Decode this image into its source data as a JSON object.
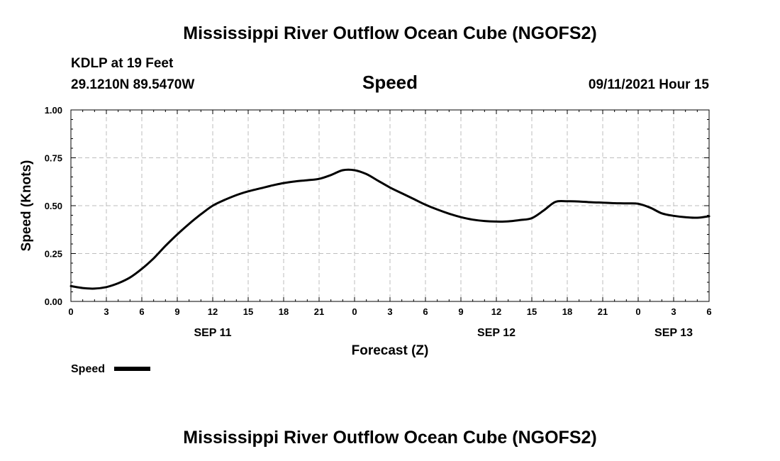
{
  "page": {
    "title_top": "Mississippi River Outflow Ocean Cube (NGOFS2)",
    "title_bottom": "Mississippi River Outflow Ocean Cube (NGOFS2)",
    "station": "KDLP at 19 Feet",
    "coords": "29.1210N  89.5470W",
    "variable": "Speed",
    "timestamp": "09/11/2021 Hour 15"
  },
  "chart_data": {
    "type": "line",
    "title": "Speed",
    "xlabel": "Forecast (Z)",
    "ylabel": "Speed (Knots)",
    "xlim": [
      0,
      54
    ],
    "ylim": [
      0,
      1
    ],
    "grid": true,
    "x_tick_labels": [
      "0",
      "3",
      "6",
      "9",
      "12",
      "15",
      "18",
      "21",
      "0",
      "3",
      "6",
      "9",
      "12",
      "15",
      "18",
      "21",
      "0",
      "3",
      "6"
    ],
    "y_tick_labels": [
      "0.00",
      "0.25",
      "0.50",
      "0.75",
      "1.00"
    ],
    "y_ticks": [
      0,
      0.25,
      0.5,
      0.75,
      1.0
    ],
    "date_labels": [
      {
        "label": "SEP 11",
        "hour": 12
      },
      {
        "label": "SEP 12",
        "hour": 36
      },
      {
        "label": "SEP 13",
        "hour": 51
      }
    ],
    "legend": {
      "position": "bottom-left",
      "entries": [
        "Speed"
      ]
    },
    "series": [
      {
        "name": "Speed",
        "color": "#000000",
        "x": [
          0,
          1,
          2,
          3,
          4,
          5,
          6,
          7,
          8,
          9,
          10,
          11,
          12,
          13,
          14,
          15,
          16,
          17,
          18,
          19,
          20,
          21,
          22,
          23,
          24,
          25,
          26,
          27,
          28,
          29,
          30,
          31,
          32,
          33,
          34,
          35,
          36,
          37,
          38,
          39,
          40,
          41,
          42,
          43,
          44,
          45,
          46,
          47,
          48,
          49,
          50,
          51,
          52,
          53,
          54
        ],
        "values": [
          0.08,
          0.07,
          0.067,
          0.075,
          0.095,
          0.125,
          0.17,
          0.225,
          0.29,
          0.35,
          0.405,
          0.455,
          0.5,
          0.53,
          0.555,
          0.575,
          0.59,
          0.605,
          0.618,
          0.627,
          0.633,
          0.64,
          0.66,
          0.685,
          0.685,
          0.665,
          0.63,
          0.595,
          0.565,
          0.535,
          0.505,
          0.48,
          0.458,
          0.44,
          0.427,
          0.42,
          0.417,
          0.418,
          0.425,
          0.435,
          0.475,
          0.52,
          0.523,
          0.522,
          0.518,
          0.516,
          0.513,
          0.512,
          0.51,
          0.49,
          0.46,
          0.447,
          0.44,
          0.437,
          0.445
        ]
      }
    ]
  }
}
